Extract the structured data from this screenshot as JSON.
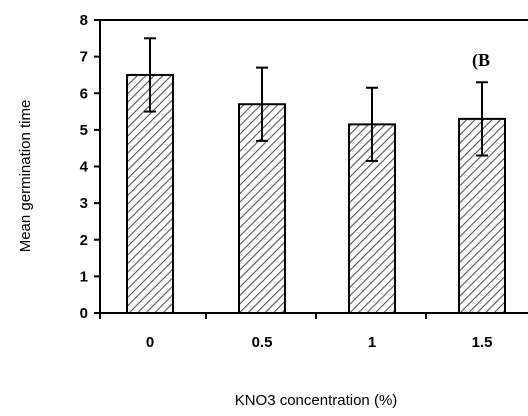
{
  "chart_data": {
    "type": "bar",
    "categories": [
      "0",
      "0.5",
      "1",
      "1.5"
    ],
    "values": [
      6.5,
      5.7,
      5.15,
      5.3
    ],
    "errors": [
      1.0,
      1.0,
      1.0,
      1.0
    ],
    "ylim": [
      0,
      8
    ],
    "yticks": [
      "0",
      "1",
      "2",
      "3",
      "4",
      "5",
      "6",
      "7",
      "8"
    ],
    "xlabel": "KNO3 concentration (%)",
    "ylabel": "Mean germination time",
    "panel_label": "(B",
    "grid": false,
    "bar_fill": "diagonal-hatch",
    "colors": {
      "hatch": "#555555",
      "axis": "#000000",
      "background": "#ffffff"
    }
  }
}
